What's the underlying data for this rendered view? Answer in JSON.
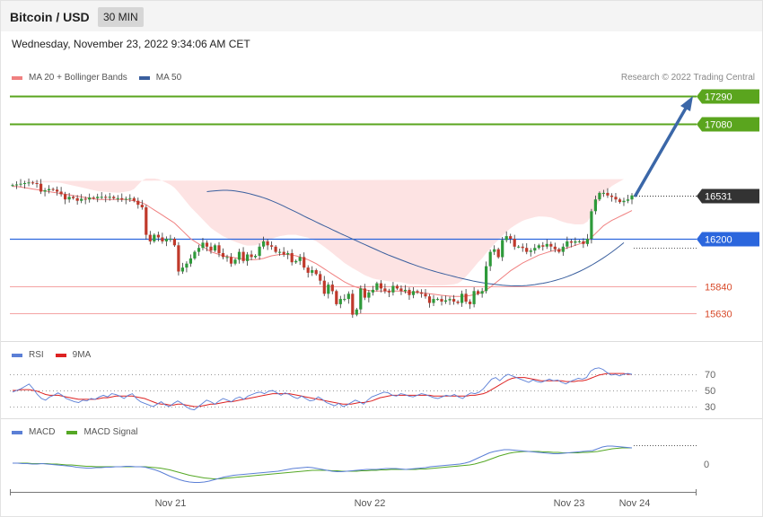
{
  "header": {
    "title": "Bitcoin / USD",
    "timeframe": "30 MIN",
    "timestamp": "Wednesday, November 23, 2022 9:34:06 AM CET"
  },
  "credit": "Research © 2022 Trading Central",
  "colors": {
    "ma20": "#f08080",
    "ma50": "#3a5f9e",
    "band": "#fde3e3",
    "up": "#2e9a3a",
    "down": "#c0392b",
    "resistance": "#5aa51e",
    "pivot": "#2b66dd",
    "support": "#f4a3a3",
    "last": "#333333",
    "arrow": "#3b67a8",
    "rsi": "#5b7fd6",
    "rsi_ma": "#dd2222",
    "macd": "#5b7fd6",
    "macd_signal": "#55a825"
  },
  "chart_data": [
    {
      "type": "candlestick",
      "legend": [
        {
          "name": "MA 20 + Bollinger Bands",
          "color": "#f08080"
        },
        {
          "name": "MA 50",
          "color": "#3a5f9e"
        }
      ],
      "x_ticks": [
        "Nov 21",
        "Nov 22",
        "Nov 23",
        "Nov 24"
      ],
      "ylim": [
        15400,
        17450
      ],
      "levels": [
        {
          "value": 17290,
          "label": "17290",
          "kind": "resistance"
        },
        {
          "value": 17080,
          "label": "17080",
          "kind": "resistance"
        },
        {
          "value": 16531,
          "label": "16531",
          "kind": "last"
        },
        {
          "value": 16200,
          "label": "16200",
          "kind": "pivot"
        },
        {
          "value": 15840,
          "label": "15840",
          "kind": "support"
        },
        {
          "value": 15630,
          "label": "15630",
          "kind": "support"
        }
      ],
      "arrow_target": 17290,
      "closes": [
        16610,
        16615,
        16620,
        16625,
        16630,
        16625,
        16620,
        16560,
        16570,
        16580,
        16575,
        16560,
        16540,
        16500,
        16520,
        16510,
        16490,
        16505,
        16500,
        16515,
        16510,
        16520,
        16520,
        16515,
        16520,
        16510,
        16510,
        16500,
        16505,
        16510,
        16490,
        16460,
        16440,
        16230,
        16180,
        16230,
        16210,
        16180,
        16200,
        16200,
        16150,
        15950,
        15980,
        16010,
        16050,
        16100,
        16130,
        16170,
        16140,
        16110,
        16150,
        16090,
        16060,
        16060,
        16010,
        16040,
        16100,
        16030,
        16080,
        16060,
        16070,
        16140,
        16180,
        16150,
        16140,
        16100,
        16100,
        16080,
        16090,
        16020,
        16030,
        16060,
        15980,
        15940,
        15960,
        15930,
        15880,
        15780,
        15850,
        15800,
        15700,
        15740,
        15740,
        15780,
        15620,
        15660,
        15820,
        15750,
        15790,
        15810,
        15860,
        15820,
        15800,
        15790,
        15840,
        15820,
        15800,
        15810,
        15770,
        15800,
        15790,
        15780,
        15760,
        15710,
        15740,
        15740,
        15720,
        15730,
        15740,
        15720,
        15710,
        15780,
        15720,
        15700,
        15800,
        15780,
        15800,
        15990,
        16100,
        16120,
        16060,
        16190,
        16220,
        16200,
        16140,
        16140,
        16130,
        16100,
        16110,
        16130,
        16150,
        16140,
        16160,
        16140,
        16120,
        16100,
        16140,
        16180,
        16170,
        16180,
        16180,
        16160,
        16200,
        16410,
        16500,
        16550,
        16550,
        16530,
        16520,
        16500,
        16480,
        16490,
        16500,
        16531
      ],
      "ma20": [
        16600,
        16600,
        16595,
        16590,
        16585,
        16580,
        16575,
        16570,
        16565,
        16560,
        16555,
        16550,
        16545,
        16540,
        16535,
        16530,
        16525,
        16520,
        16515,
        16510,
        16505,
        16500,
        16500,
        16500,
        16500,
        16500,
        16500,
        16500,
        16500,
        16495,
        16490,
        16482,
        16475,
        16460,
        16440,
        16420,
        16400,
        16380,
        16360,
        16340,
        16320,
        16290,
        16260,
        16230,
        16200,
        16180,
        16160,
        16140,
        16120,
        16100,
        16090,
        16080,
        16070,
        16065,
        16060,
        16055,
        16050,
        16045,
        16040,
        16040,
        16040,
        16045,
        16050,
        16060,
        16070,
        16075,
        16080,
        16080,
        16080,
        16075,
        16070,
        16060,
        16050,
        16040,
        16025,
        16010,
        15990,
        15970,
        15950,
        15930,
        15910,
        15890,
        15870,
        15855,
        15840,
        15830,
        15820,
        15810,
        15805,
        15800,
        15800,
        15800,
        15800,
        15800,
        15800,
        15800,
        15800,
        15795,
        15790,
        15790,
        15790,
        15788,
        15785,
        15780,
        15776,
        15772,
        15768,
        15765,
        15762,
        15760,
        15760,
        15760,
        15762,
        15766,
        15772,
        15780,
        15790,
        15810,
        15830,
        15855,
        15880,
        15905,
        15930,
        15955,
        15975,
        15995,
        16015,
        16030,
        16045,
        16060,
        16075,
        16085,
        16095,
        16105,
        16110,
        16115,
        16120,
        16130,
        16140,
        16150,
        16160,
        16170,
        16180,
        16210,
        16240,
        16270,
        16300,
        16320,
        16340,
        16355,
        16370,
        16385,
        16400,
        16415
      ],
      "bb_width": [
        40,
        42,
        44,
        46,
        48,
        50,
        55,
        60,
        65,
        70,
        75,
        80,
        82,
        80,
        78,
        76,
        74,
        72,
        70,
        68,
        66,
        64,
        60,
        58,
        56,
        54,
        52,
        55,
        60,
        70,
        90,
        130,
        170,
        200,
        220,
        240,
        255,
        262,
        268,
        272,
        270,
        265,
        258,
        250,
        242,
        230,
        218,
        206,
        194,
        182,
        170,
        160,
        150,
        140,
        130,
        122,
        116,
        110,
        108,
        108,
        110,
        115,
        120,
        125,
        130,
        135,
        140,
        145,
        150,
        155,
        160,
        162,
        165,
        168,
        170,
        172,
        170,
        168,
        165,
        160,
        155,
        150,
        145,
        140,
        135,
        128,
        120,
        112,
        104,
        96,
        90,
        85,
        80,
        75,
        72,
        70,
        68,
        66,
        64,
        62,
        62,
        62,
        64,
        66,
        68,
        72,
        76,
        80,
        86,
        92,
        100,
        120,
        150,
        180,
        210,
        240,
        260,
        280,
        295,
        305,
        312,
        318,
        322,
        325,
        326,
        325,
        322,
        318,
        312,
        305,
        296,
        285,
        272,
        258,
        242,
        225,
        208,
        190,
        175,
        160,
        150,
        142,
        150,
        170,
        195,
        220,
        240,
        255,
        262,
        266,
        268,
        270
      ],
      "ma50": [
        16560,
        16563,
        16566,
        16568,
        16570,
        16570,
        16568,
        16565,
        16560,
        16555,
        16548,
        16540,
        16532,
        16523,
        16513,
        16502,
        16490,
        16477,
        16463,
        16449,
        16434,
        16419,
        16404,
        16389,
        16373,
        16358,
        16343,
        16328,
        16313,
        16298,
        16284,
        16269,
        16255,
        16240,
        16226,
        16212,
        16198,
        16184,
        16170,
        16156,
        16142,
        16128,
        16114,
        16100,
        16087,
        16074,
        16062,
        16050,
        16038,
        16026,
        16014,
        16003,
        15992,
        15982,
        15972,
        15962,
        15953,
        15944,
        15936,
        15928,
        15920,
        15912,
        15904,
        15897,
        15890,
        15883,
        15876,
        15870,
        15865,
        15860,
        15856,
        15852,
        15848,
        15845,
        15843,
        15841,
        15840,
        15840,
        15841,
        15843,
        15846,
        15850,
        15855,
        15860,
        15866,
        15873,
        15881,
        15890,
        15900,
        15911,
        15923,
        15936,
        15950,
        15965,
        15981,
        15998,
        16016,
        16035,
        16055,
        16076,
        16098,
        16121,
        16145,
        16170
      ],
      "ma50_start_index": 48
    },
    {
      "type": "line",
      "legend": [
        {
          "name": "RSI",
          "color": "#5b7fd6"
        },
        {
          "name": "9MA",
          "color": "#dd2222"
        }
      ],
      "y_ticks": [
        70,
        50,
        30
      ],
      "ylim": [
        20,
        85
      ],
      "series": [
        {
          "name": "RSI",
          "values": [
            48,
            50,
            52,
            55,
            58,
            52,
            45,
            40,
            38,
            42,
            44,
            47,
            44,
            40,
            38,
            36,
            35,
            38,
            37,
            40,
            39,
            42,
            44,
            42,
            46,
            45,
            43,
            40,
            44,
            46,
            40,
            36,
            34,
            32,
            30,
            33,
            36,
            32,
            30,
            34,
            37,
            34,
            30,
            27,
            26,
            30,
            34,
            38,
            36,
            33,
            37,
            40,
            38,
            36,
            40,
            42,
            39,
            43,
            45,
            47,
            48,
            46,
            49,
            50,
            47,
            44,
            47,
            45,
            42,
            40,
            43,
            40,
            37,
            38,
            42,
            39,
            35,
            33,
            31,
            34,
            30,
            32,
            35,
            38,
            36,
            33,
            38,
            42,
            44,
            46,
            48,
            47,
            44,
            43,
            46,
            45,
            43,
            42,
            44,
            46,
            45,
            43,
            41,
            40,
            42,
            44,
            43,
            45,
            42,
            40,
            44,
            47,
            46,
            48,
            52,
            58,
            64,
            66,
            62,
            67,
            70,
            68,
            66,
            64,
            62,
            60,
            63,
            61,
            60,
            62,
            64,
            62,
            63,
            60,
            58,
            61,
            63,
            65,
            64,
            66,
            74,
            77,
            78,
            76,
            72,
            69,
            70,
            68,
            70,
            71,
            70
          ]
        },
        {
          "name": "9MA",
          "values": [
            50,
            50,
            51,
            51,
            51,
            50,
            49,
            47,
            45,
            44,
            44,
            44,
            43,
            42,
            41,
            40,
            39,
            39,
            39,
            39,
            39,
            40,
            41,
            41,
            42,
            43,
            43,
            43,
            43,
            43,
            42,
            41,
            40,
            38,
            36,
            34,
            33,
            33,
            32,
            32,
            33,
            33,
            32,
            31,
            30,
            30,
            31,
            32,
            33,
            33,
            34,
            35,
            36,
            36,
            37,
            38,
            39,
            40,
            41,
            42,
            43,
            44,
            45,
            46,
            46,
            46,
            46,
            46,
            45,
            44,
            43,
            42,
            41,
            40,
            39,
            38,
            37,
            36,
            35,
            34,
            33,
            33,
            33,
            34,
            35,
            35,
            36,
            37,
            39,
            41,
            42,
            43,
            44,
            44,
            44,
            44,
            44,
            44,
            44,
            44,
            44,
            44,
            43,
            43,
            43,
            43,
            43,
            43,
            43,
            43,
            43,
            44,
            44,
            45,
            46,
            48,
            51,
            54,
            57,
            60,
            63,
            65,
            66,
            66,
            66,
            65,
            64,
            63,
            62,
            62,
            62,
            62,
            62,
            62,
            61,
            61,
            61,
            62,
            62,
            63,
            65,
            67,
            69,
            70,
            71,
            71,
            71,
            71,
            71,
            70,
            70
          ]
        }
      ]
    },
    {
      "type": "line",
      "legend": [
        {
          "name": "MACD",
          "color": "#5b7fd6"
        },
        {
          "name": "MACD Signal",
          "color": "#55a825"
        }
      ],
      "y_ticks": [
        0
      ],
      "ylim": [
        -70,
        60
      ],
      "series": [
        {
          "name": "MACD",
          "values": [
            2,
            2,
            1,
            1,
            0,
            0,
            1,
            0,
            -1,
            -2,
            -3,
            -4,
            -5,
            -7,
            -8,
            -9,
            -9,
            -8,
            -8,
            -7,
            -7,
            -6,
            -6,
            -5,
            -5,
            -6,
            -6,
            -7,
            -10,
            -13,
            -17,
            -22,
            -27,
            -31,
            -35,
            -38,
            -40,
            -41,
            -41,
            -40,
            -38,
            -35,
            -32,
            -29,
            -27,
            -25,
            -24,
            -23,
            -22,
            -21,
            -20,
            -19,
            -18,
            -17,
            -16,
            -14,
            -12,
            -10,
            -9,
            -8,
            -7,
            -8,
            -10,
            -12,
            -14,
            -16,
            -17,
            -17,
            -16,
            -15,
            -14,
            -13,
            -12,
            -12,
            -12,
            -11,
            -10,
            -10,
            -10,
            -11,
            -12,
            -11,
            -10,
            -9,
            -8,
            -6,
            -5,
            -4,
            -3,
            -2,
            -1,
            0,
            2,
            5,
            10,
            15,
            20,
            25,
            28,
            30,
            32,
            32,
            31,
            30,
            29,
            28,
            27,
            26,
            25,
            24,
            23,
            23,
            24,
            25,
            26,
            27,
            28,
            29,
            30,
            34,
            38,
            40,
            40,
            39,
            38,
            37,
            36
          ]
        },
        {
          "name": "MACD Signal",
          "values": [
            2,
            2,
            2,
            2,
            1,
            1,
            1,
            1,
            0,
            0,
            -1,
            -2,
            -2,
            -3,
            -4,
            -5,
            -5,
            -6,
            -6,
            -6,
            -6,
            -6,
            -6,
            -6,
            -6,
            -6,
            -6,
            -6,
            -7,
            -8,
            -9,
            -11,
            -13,
            -16,
            -19,
            -22,
            -25,
            -27,
            -29,
            -31,
            -32,
            -33,
            -33,
            -32,
            -31,
            -30,
            -29,
            -28,
            -27,
            -26,
            -25,
            -24,
            -23,
            -22,
            -21,
            -20,
            -19,
            -18,
            -17,
            -16,
            -15,
            -14,
            -14,
            -14,
            -14,
            -15,
            -15,
            -16,
            -16,
            -16,
            -16,
            -15,
            -15,
            -14,
            -14,
            -13,
            -13,
            -12,
            -12,
            -12,
            -12,
            -12,
            -12,
            -11,
            -11,
            -10,
            -9,
            -8,
            -7,
            -6,
            -5,
            -4,
            -3,
            -2,
            0,
            3,
            6,
            10,
            14,
            18,
            21,
            24,
            26,
            27,
            28,
            28,
            28,
            28,
            27,
            27,
            26,
            26,
            25,
            25,
            25,
            25,
            26,
            26,
            27,
            28,
            30,
            32,
            34,
            35,
            36,
            36,
            36
          ]
        }
      ]
    }
  ]
}
